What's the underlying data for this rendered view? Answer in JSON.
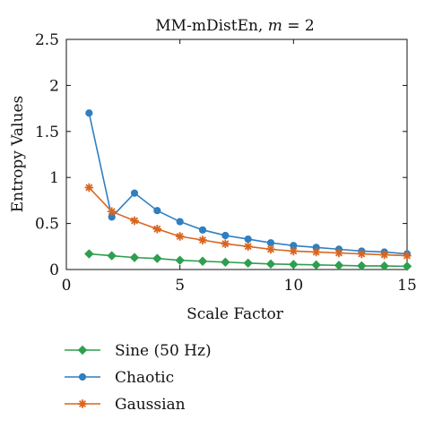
{
  "chart_data": {
    "type": "line",
    "title": "MM-mDistEn, ",
    "title_math": "m",
    "title_suffix": " = 2",
    "xlabel": "Scale Factor",
    "ylabel": "Entropy Values",
    "xlim": [
      0,
      15
    ],
    "ylim": [
      0,
      2.5
    ],
    "xticks": [
      0,
      5,
      10,
      15
    ],
    "xtick_labels": [
      "0",
      "5",
      "10",
      "15"
    ],
    "yticks": [
      0,
      0.5,
      1,
      1.5,
      2,
      2.5
    ],
    "ytick_labels": [
      "0",
      "0.5",
      "1",
      "1.5",
      "2",
      "2.5"
    ],
    "grid": false,
    "legend_position": "below",
    "x": [
      1,
      2,
      3,
      4,
      5,
      6,
      7,
      8,
      9,
      10,
      11,
      12,
      13,
      14,
      15
    ],
    "series": [
      {
        "name": "Sine (50 Hz)",
        "color": "#2e9e4f",
        "marker": "diamond",
        "values": [
          0.17,
          0.15,
          0.13,
          0.12,
          0.1,
          0.09,
          0.08,
          0.07,
          0.06,
          0.055,
          0.05,
          0.045,
          0.04,
          0.038,
          0.035
        ]
      },
      {
        "name": "Chaotic",
        "color": "#2f7fc1",
        "marker": "circle",
        "values": [
          1.7,
          0.57,
          0.83,
          0.64,
          0.52,
          0.43,
          0.37,
          0.33,
          0.29,
          0.26,
          0.24,
          0.22,
          0.2,
          0.19,
          0.17
        ]
      },
      {
        "name": "Gaussian",
        "color": "#d9651f",
        "marker": "star",
        "values": [
          0.89,
          0.63,
          0.53,
          0.44,
          0.36,
          0.32,
          0.28,
          0.25,
          0.22,
          0.2,
          0.19,
          0.18,
          0.17,
          0.16,
          0.15
        ]
      }
    ]
  }
}
